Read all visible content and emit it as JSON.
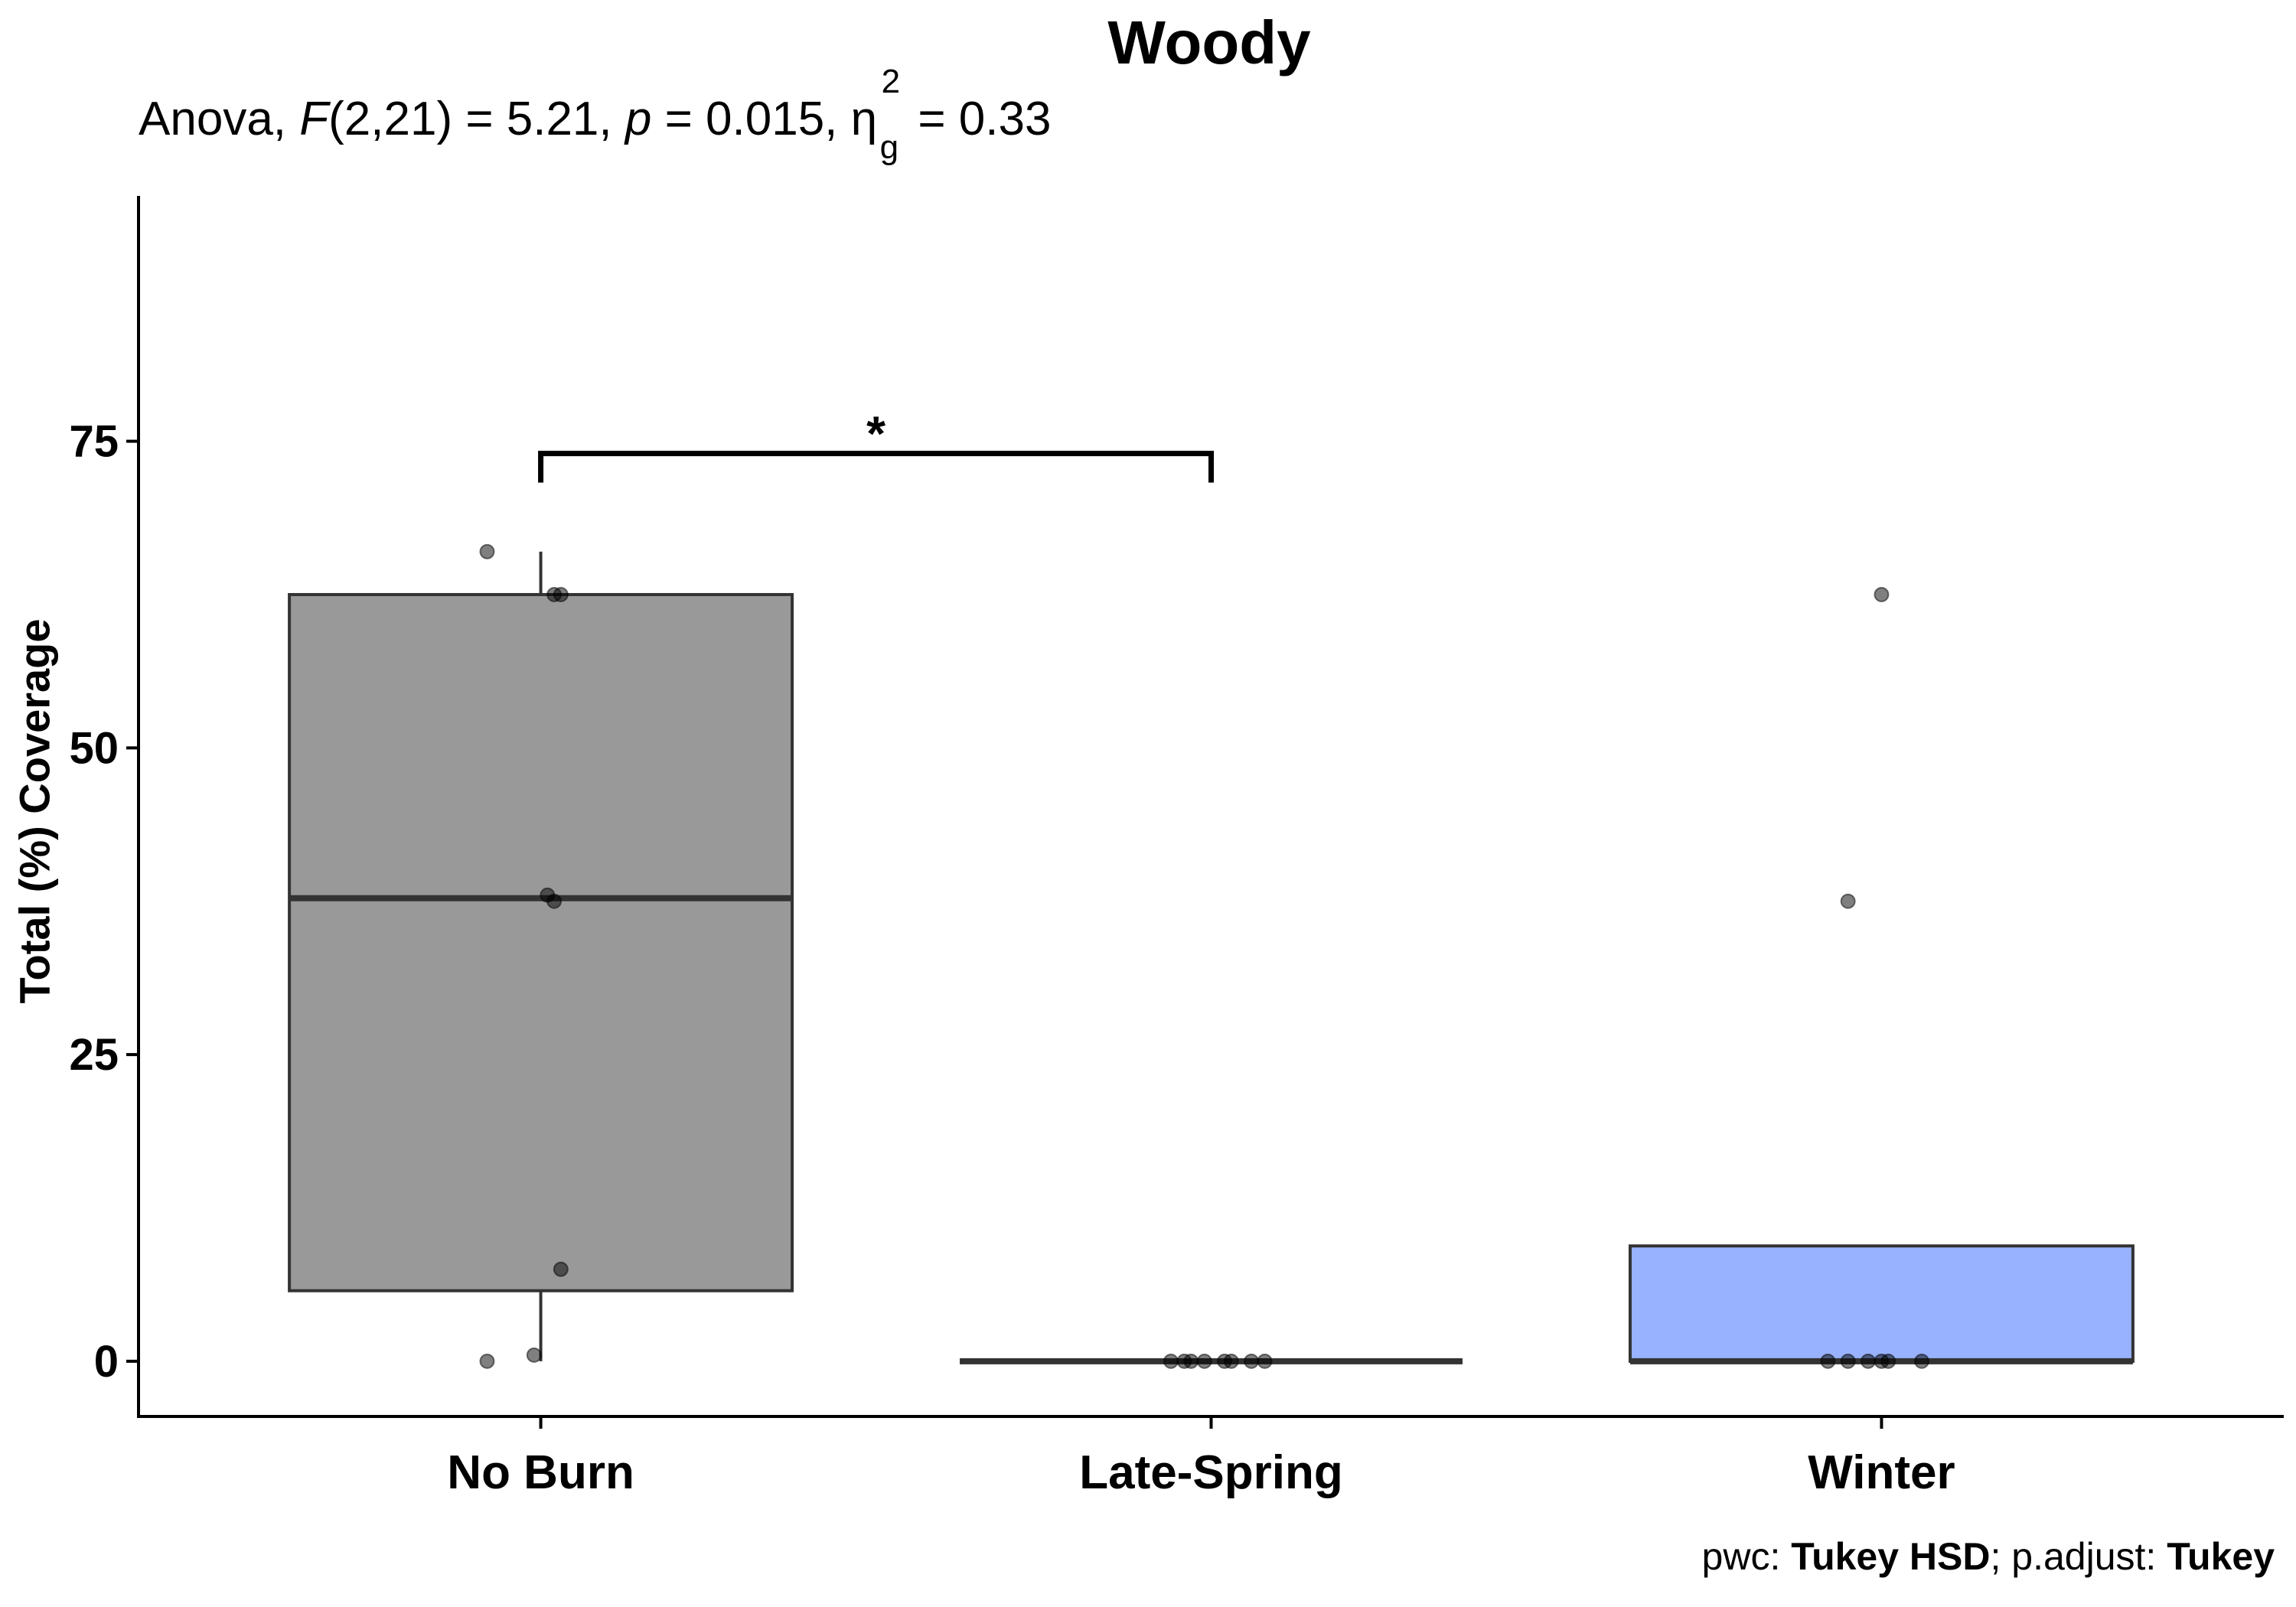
{
  "chart_data": {
    "type": "box",
    "title": "Woody",
    "subtitle": {
      "prefix": "Anova, ",
      "f_symbol": "F",
      "f_args": "(2,21) = 5.21, ",
      "p_symbol": "p",
      "p_value": " = 0.015, ",
      "eta_symbol": "η",
      "eta_sup": "2",
      "eta_sub": "g",
      "eta_value": " = 0.33"
    },
    "ylabel": "Total (%) Coverage",
    "xlabel": "",
    "ylim": [
      -4.5,
      95
    ],
    "yticks": [
      0,
      25,
      50,
      75
    ],
    "grid": false,
    "legend": "none",
    "categories": [
      "No Burn",
      "Late-Spring",
      "Winter"
    ],
    "boxes": [
      {
        "category": "No Burn",
        "q1": 5.75,
        "median": 37.75,
        "q3": 62.5,
        "whisker_low": 0,
        "whisker_high": 66,
        "color": "#999999"
      },
      {
        "category": "Late-Spring",
        "q1": 0,
        "median": 0,
        "q3": 0,
        "whisker_low": 0,
        "whisker_high": 0,
        "color": "#999999"
      },
      {
        "category": "Winter",
        "q1": 0,
        "median": 0,
        "q3": 9.4,
        "whisker_low": 0,
        "whisker_high": 9.4,
        "color": "#99B2FF"
      }
    ],
    "points": [
      {
        "category": "No Burn",
        "values": [
          66,
          62.5,
          62.5,
          38,
          37.5,
          7.5,
          0.5,
          0
        ],
        "jitter": [
          -0.08,
          0.02,
          0.03,
          0.01,
          0.02,
          0.03,
          -0.01,
          -0.08
        ]
      },
      {
        "category": "Late-Spring",
        "values": [
          0,
          0,
          0,
          0,
          0,
          0,
          0,
          0
        ],
        "jitter": [
          -0.06,
          -0.04,
          -0.03,
          -0.01,
          0.02,
          0.03,
          0.06,
          0.08
        ]
      },
      {
        "category": "Winter",
        "values": [
          62.5,
          37.5,
          0,
          0,
          0,
          0,
          0,
          0
        ],
        "jitter": [
          0,
          -0.05,
          -0.08,
          -0.05,
          -0.02,
          0,
          0.01,
          0.06
        ]
      }
    ],
    "significance": [
      {
        "from": "No Burn",
        "to": "Late-Spring",
        "y": 74,
        "label": "*"
      }
    ],
    "caption": {
      "pwc_prefix": "pwc: ",
      "pwc_method": "Tukey HSD",
      "adjust_prefix": "; p.adjust: ",
      "adjust_method": "Tukey"
    }
  }
}
